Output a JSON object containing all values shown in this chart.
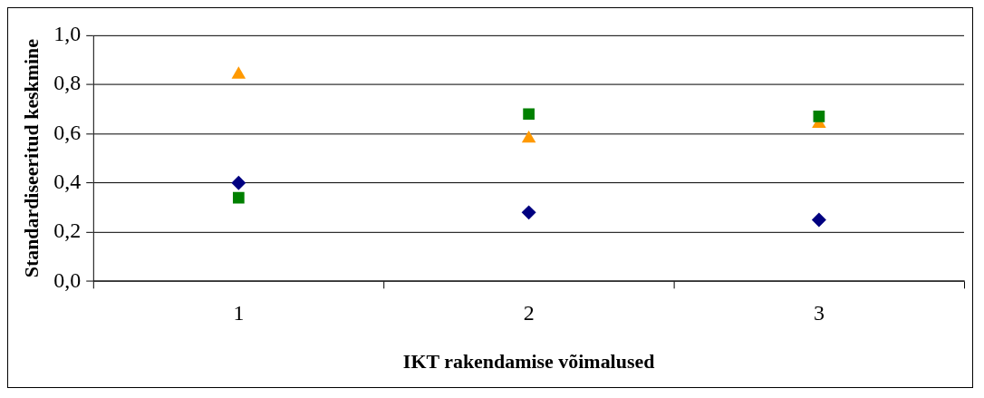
{
  "chart_data": {
    "type": "scatter",
    "xlabel": "IKT rakendamise võimalused",
    "ylabel": "Standardiseeritud keskmine",
    "categories": [
      "1",
      "2",
      "3"
    ],
    "series": [
      {
        "color": "#000080",
        "marker": "diamond",
        "values": [
          0.4,
          0.28,
          0.25
        ]
      },
      {
        "color": "#008000",
        "marker": "square",
        "values": [
          0.34,
          0.68,
          0.67
        ]
      },
      {
        "color": "#ff9900",
        "marker": "triangle",
        "values": [
          0.84,
          0.58,
          0.64
        ]
      }
    ],
    "ylim": [
      0,
      1
    ],
    "yticks": [
      {
        "value": 0,
        "label": "0,0"
      },
      {
        "value": 0.2,
        "label": "0,2"
      },
      {
        "value": 0.4,
        "label": "0,4"
      },
      {
        "value": 0.6,
        "label": "0,6"
      },
      {
        "value": 0.8,
        "label": "0,8"
      },
      {
        "value": 1,
        "label": "1,0"
      }
    ],
    "grid": "y",
    "legend": false
  }
}
